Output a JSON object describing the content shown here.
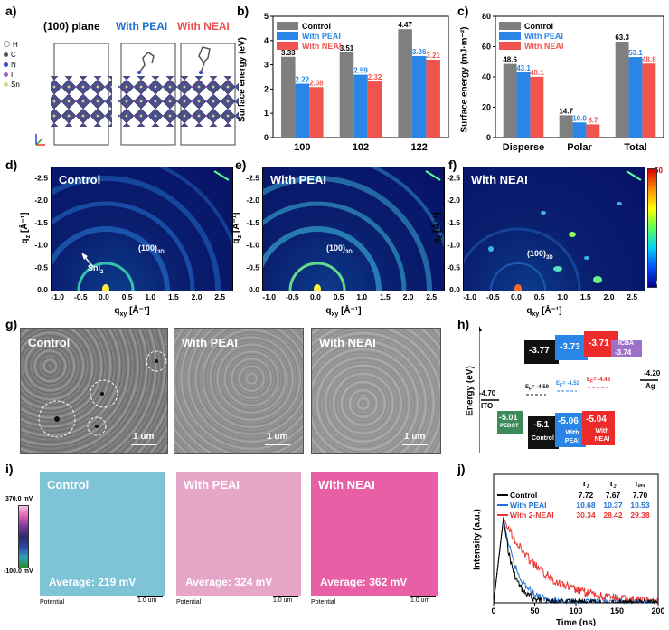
{
  "panel_labels": [
    "a)",
    "b)",
    "c)",
    "d)",
    "e)",
    "f)",
    "g)",
    "h)",
    "i)",
    "j)"
  ],
  "panel_a": {
    "titles": [
      "(100) plane",
      "With PEAI",
      "With NEAI"
    ],
    "title_colors": [
      "#000000",
      "#1f6fd6",
      "#e8504f"
    ],
    "legend": [
      "H",
      "C",
      "N",
      "I",
      "Sn"
    ]
  },
  "chart_b": {
    "type": "bar",
    "ylabel": "Surface energy (eV)",
    "categories": [
      "100",
      "102",
      "122"
    ],
    "ylim": [
      0,
      5
    ],
    "yticks": [
      "0",
      "1",
      "2",
      "3",
      "4",
      "5"
    ],
    "series": [
      {
        "name": "Control",
        "color": "#7f7f7f",
        "values": [
          3.33,
          3.51,
          4.47
        ],
        "labels": [
          "3.33",
          "3.51",
          "4.47"
        ]
      },
      {
        "name": "With PEAI",
        "color": "#2a86e6",
        "values": [
          2.22,
          2.59,
          3.36
        ],
        "labels": [
          "2.22",
          "2.59",
          "3.36"
        ]
      },
      {
        "name": "With NEAI",
        "color": "#f0544f",
        "values": [
          2.08,
          2.32,
          3.21
        ],
        "labels": [
          "2.08",
          "2.32",
          "3.21"
        ]
      }
    ]
  },
  "chart_c": {
    "type": "bar",
    "ylabel": "Surface energy (mJ·m⁻²)",
    "categories": [
      "Disperse",
      "Polar",
      "Total"
    ],
    "ylim": [
      0,
      80
    ],
    "yticks": [
      "0",
      "20",
      "40",
      "60",
      "80"
    ],
    "series": [
      {
        "name": "Control",
        "color": "#7f7f7f",
        "values": [
          48.6,
          14.7,
          63.3
        ],
        "labels": [
          "48.6",
          "14.7",
          "63.3"
        ]
      },
      {
        "name": "With PEAI",
        "color": "#2a86e6",
        "values": [
          43.1,
          10.0,
          53.1
        ],
        "labels": [
          "43.1",
          "10.0",
          "53.1"
        ]
      },
      {
        "name": "With NEAI",
        "color": "#f0544f",
        "values": [
          40.1,
          8.7,
          48.8
        ],
        "labels": [
          "40.1",
          "8.7",
          "48.8"
        ]
      }
    ]
  },
  "giwaxs": {
    "titles": [
      "Control",
      "With PEAI",
      "With NEAI"
    ],
    "peak_label": "(100)",
    "peak_sub": "3D",
    "sni2_label": "SnI",
    "sni2_sub": "2",
    "xlabel": "q",
    "xlabel_sub": "xy",
    "xlabel_unit": " [Å⁻¹]",
    "ylabel": "q",
    "ylabel_sub": "z",
    "ylabel_unit": " [Å⁻¹]",
    "xticks": [
      "-1.0",
      "-0.5",
      "0.0",
      "0.5",
      "1.0",
      "1.5",
      "2.0",
      "2.5"
    ],
    "yticks": [
      "-2.5",
      "-2.0",
      "-1.5",
      "-1.0",
      "-0.5",
      "0.0"
    ],
    "colorbar": [
      "50",
      "0"
    ]
  },
  "sem": {
    "titles": [
      "Control",
      "With PEAI",
      "With NEAI"
    ],
    "scalebar": "1 um"
  },
  "chart_h": {
    "type": "diagram",
    "ylabel": "Energy (eV)",
    "ito": "-4.70",
    "ito_label": "ITO",
    "ag": "-4.20",
    "ag_label": "Ag",
    "pedot": "-5.01",
    "pedot_label": "PEDOT",
    "lumo": [
      "-3.77",
      "-3.73",
      "-3.71"
    ],
    "homo": [
      "-5.1",
      "-5.06",
      "-5.04"
    ],
    "homo_labels": [
      "Control",
      "With PEAI",
      "With NEAI"
    ],
    "icba_label": "ICBA",
    "icba": "-3.74",
    "ef_prefix": "E",
    "ef_sub": "F",
    "ef": [
      "= -4.59",
      "= -4.52",
      "= -4.48"
    ],
    "colors": {
      "control": "#111111",
      "peai": "#2a86e6",
      "neai": "#ee2b2b",
      "icba": "#9b72c8",
      "pedot": "#3c8a5a"
    }
  },
  "kpfm": {
    "titles": [
      "Control",
      "With PEAI",
      "With NEAI"
    ],
    "averages": [
      "Average: 219 mV",
      "Average: 324 mV",
      "Average: 362 mV"
    ],
    "colors": [
      "#7fc4d6",
      "#e6a6c8",
      "#e85fa6"
    ],
    "scale_top": "370.0 mV",
    "scale_bottom": "-100.0 mV",
    "potential_label": "Potential",
    "scalebar": "1.0 um"
  },
  "chart_j": {
    "type": "line",
    "xlabel": "Time (ns)",
    "ylabel": "Intensity (a.u.)",
    "xlim": [
      0,
      200
    ],
    "xticks": [
      "0",
      "50",
      "100",
      "150",
      "200"
    ],
    "table_headers": [
      "τ₁",
      "τ₂",
      "τₐᵥₑ"
    ],
    "series": [
      {
        "name": "Control",
        "color": "#000000",
        "tau1": "7.72",
        "tau2": "7.67",
        "tave": "7.70",
        "tau_ns": 7.7
      },
      {
        "name": "With PEAI",
        "color": "#1f6fd6",
        "tau1": "10.68",
        "tau2": "10.37",
        "tave": "10.53",
        "tau_ns": 10.5
      },
      {
        "name": "With 2-NEAI",
        "color": "#e8322e",
        "tau1": "30.34",
        "tau2": "28.42",
        "tave": "29.38",
        "tau_ns": 29.4
      }
    ]
  }
}
